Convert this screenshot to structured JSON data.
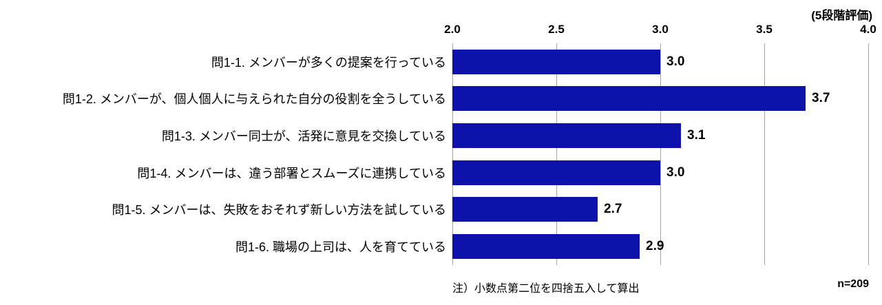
{
  "chart_data": {
    "type": "bar",
    "orientation": "horizontal",
    "title": "",
    "scale_note": "(5段階評価)",
    "categories": [
      "問1-1. メンバーが多くの提案を行っている",
      "問1-2. メンバーが、個人個人に与えられた自分の役割を全うしている",
      "問1-3. メンバー同士が、活発に意見を交換している",
      "問1-4. メンバーは、違う部署とスムーズに連携している",
      "問1-5. メンバーは、失敗をおそれず新しい方法を試している",
      "問1-6. 職場の上司は、人を育てている"
    ],
    "values": [
      3.0,
      3.7,
      3.1,
      3.0,
      2.7,
      2.9
    ],
    "value_labels": [
      "3.0",
      "3.7",
      "3.1",
      "3.0",
      "2.7",
      "2.9"
    ],
    "xlabel": "",
    "ylabel": "",
    "xlim": [
      2.0,
      4.0
    ],
    "xticks": [
      "2.0",
      "2.5",
      "3.0",
      "3.5",
      "4.0"
    ],
    "grid": true,
    "legend": "none",
    "bar_color": "#0d12aa",
    "gridline_color": "#a6a6a6",
    "note": "注）小数点第二位を四捨五入して算出",
    "sample_size_label": "n=209"
  }
}
